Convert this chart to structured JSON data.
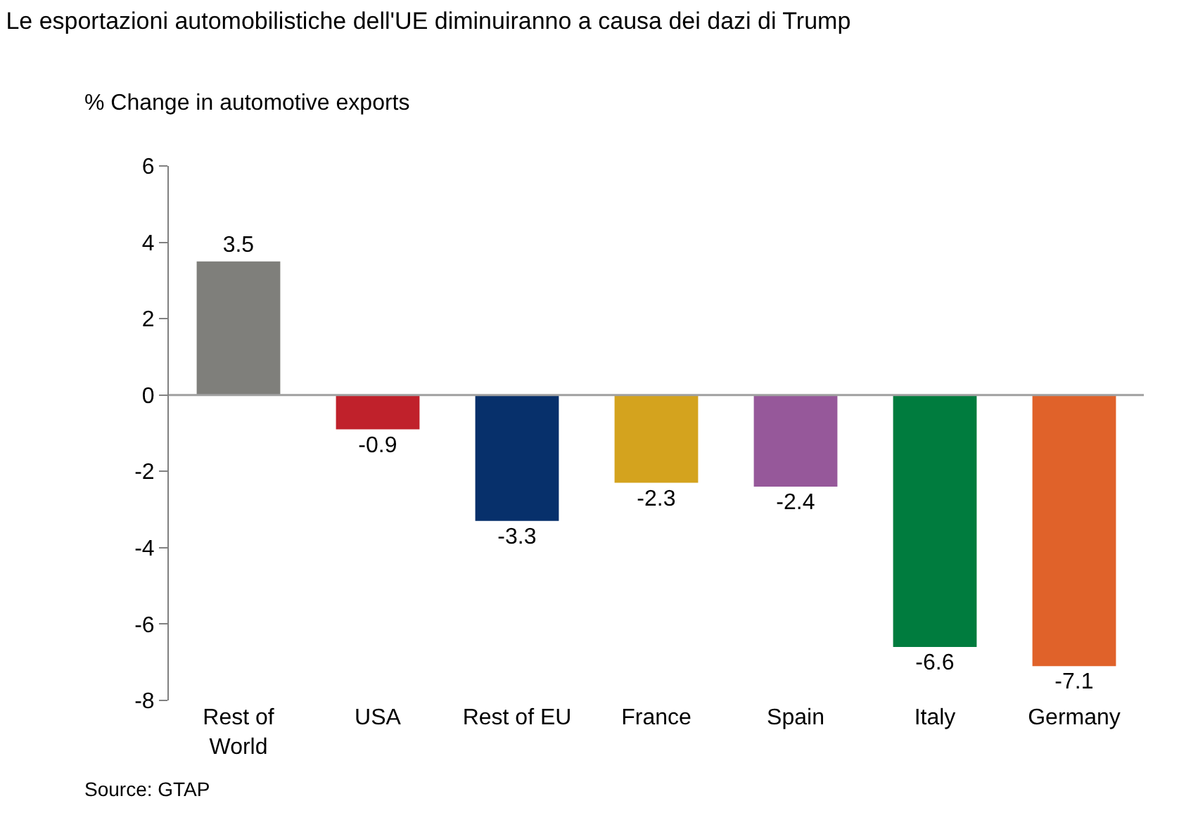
{
  "chart_data": {
    "type": "bar",
    "title": "Le esportazioni automobilistiche dell'UE diminuiranno a causa dei dazi di Trump",
    "ylabel": "% Change in automotive exports",
    "categories": [
      "Rest of World",
      "USA",
      "Rest of EU",
      "France",
      "Spain",
      "Italy",
      "Germany"
    ],
    "values": [
      3.5,
      -0.9,
      -3.3,
      -2.3,
      -2.4,
      -6.6,
      -7.1
    ],
    "colors": [
      "#7f7f7b",
      "#c0212b",
      "#07306b",
      "#d4a31e",
      "#96589a",
      "#007c3e",
      "#e0622a"
    ],
    "ylim": [
      -8,
      6
    ],
    "yticks": [
      -8,
      -6,
      -4,
      -2,
      0,
      2,
      4,
      6
    ],
    "ref_lines": [
      {
        "axis": "y",
        "value": 0,
        "color": "#a0a0a0"
      }
    ],
    "legend": false,
    "data_labels": true,
    "annotations": [
      "Source: GTAP"
    ]
  }
}
